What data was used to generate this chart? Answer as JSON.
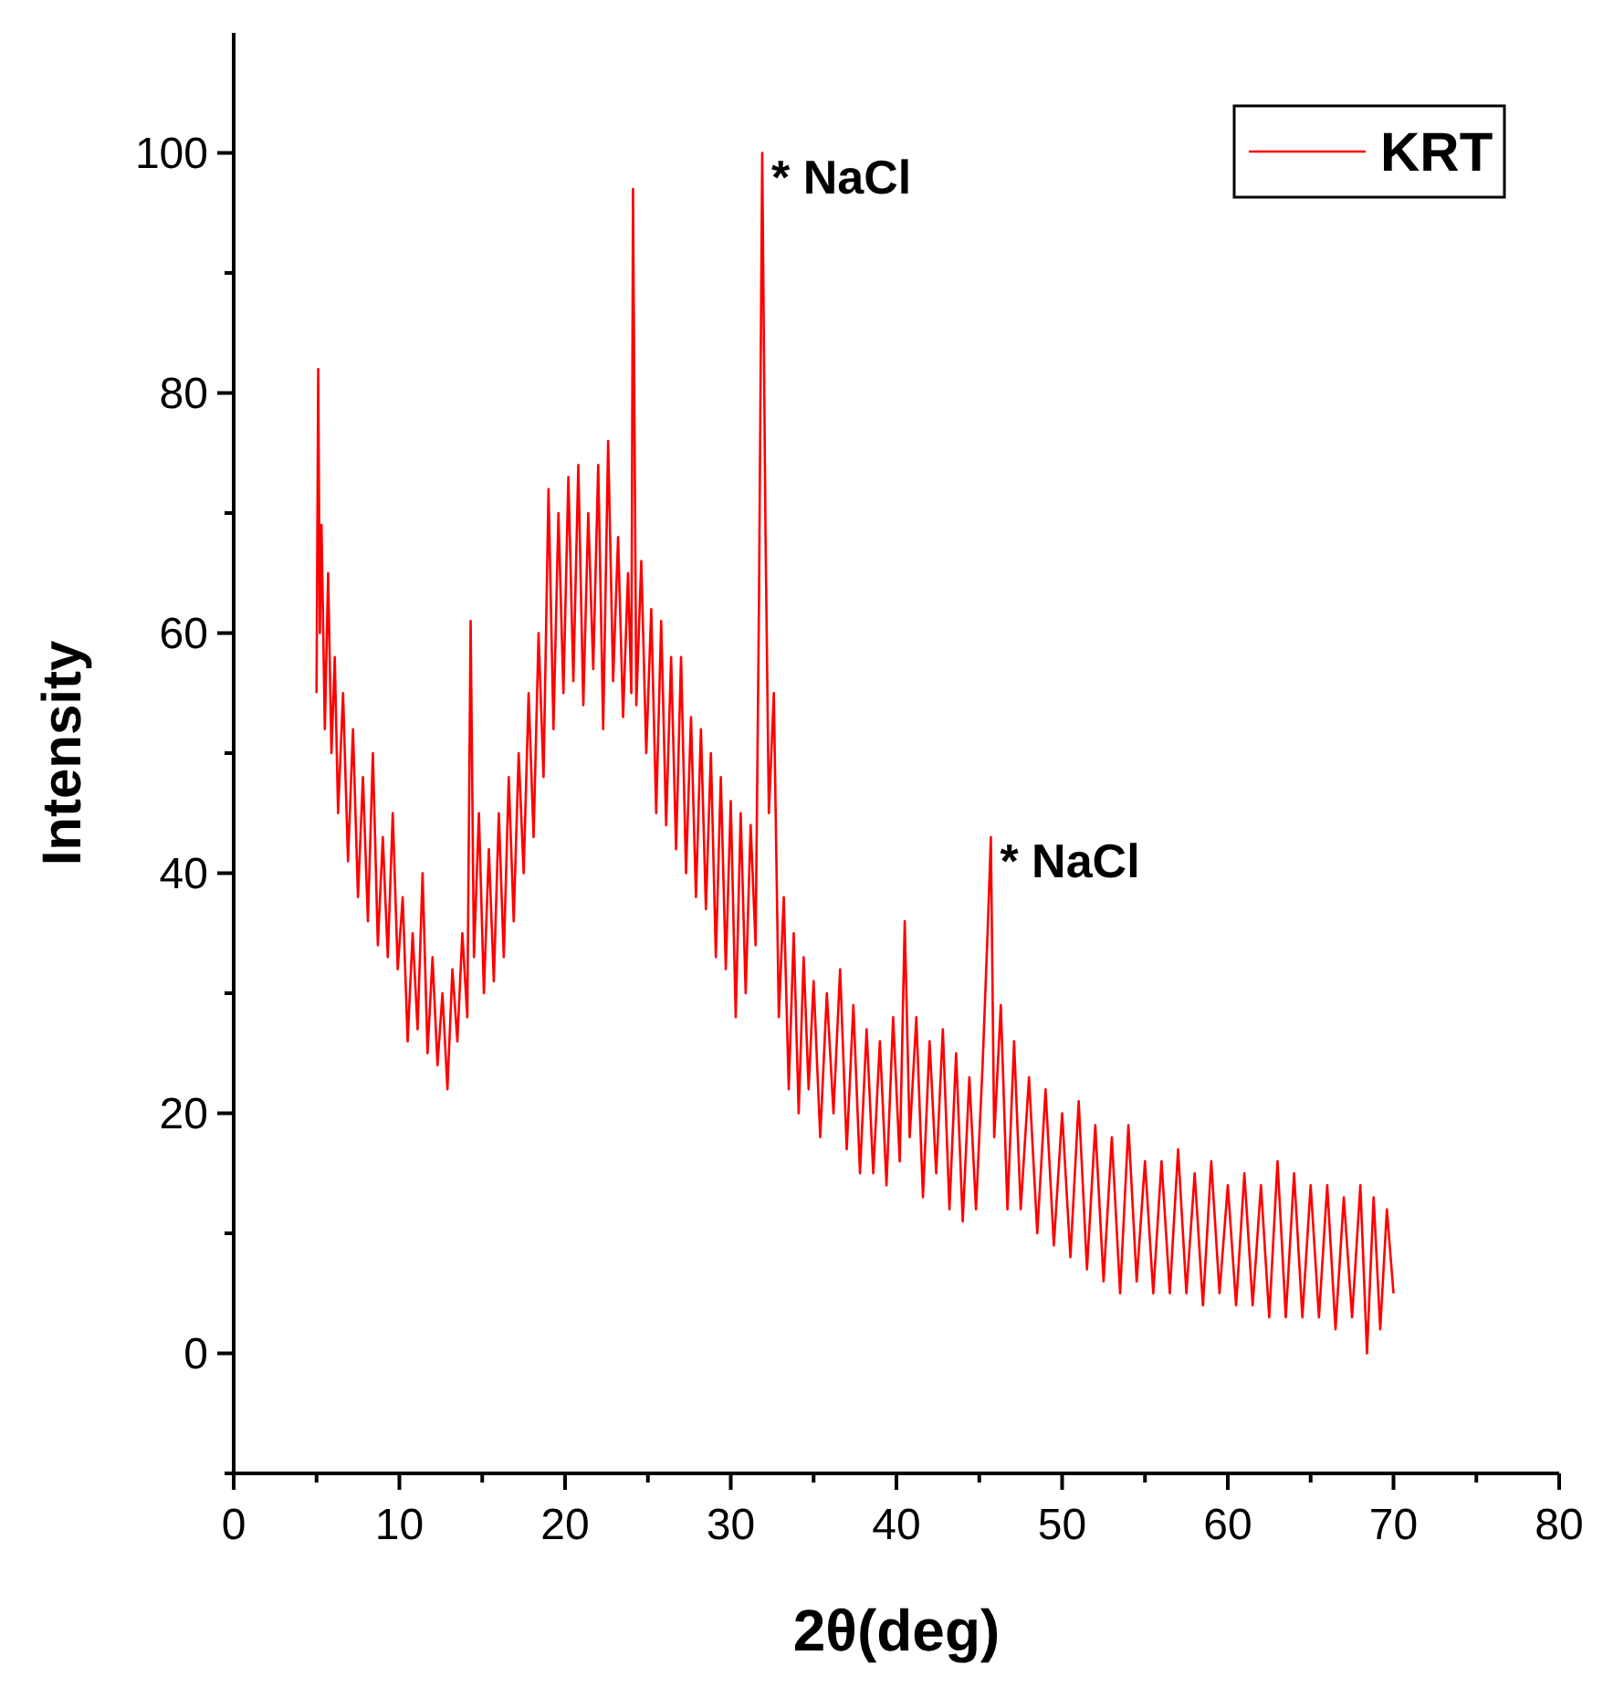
{
  "chart_data": {
    "type": "line",
    "xlabel": "2θ(deg)",
    "ylabel": "Intensity",
    "xlim": [
      0,
      80
    ],
    "ylim": [
      -10,
      110
    ],
    "xticks": [
      0,
      {
        "value": 5,
        "label": null
      },
      10,
      {
        "value": 15,
        "label": null
      },
      20,
      {
        "value": 25,
        "label": null
      },
      30,
      {
        "value": 35,
        "label": null
      },
      40,
      {
        "value": 45,
        "label": null
      },
      50,
      {
        "value": 55,
        "label": null
      },
      60,
      {
        "value": 65,
        "label": null
      },
      70,
      {
        "value": 75,
        "label": null
      },
      80
    ],
    "yticks": [
      {
        "value": -10,
        "label": null
      },
      0,
      {
        "value": 10,
        "label": null
      },
      20,
      {
        "value": 30,
        "label": null
      },
      40,
      {
        "value": 50,
        "label": null
      },
      60,
      {
        "value": 70,
        "label": null
      },
      80,
      {
        "value": 90,
        "label": null
      },
      100
    ],
    "grid": false,
    "legend": "top right",
    "marker": "none",
    "line_style": "solid",
    "annotations": [
      {
        "text": "* NaCl",
        "x": 31.9,
        "y": 100
      },
      {
        "text": "* NaCl",
        "x": 45.7,
        "y": 43
      }
    ],
    "series": [
      {
        "name": "KRT",
        "color": "#ff0000",
        "x": [
          5.0,
          5.1,
          5.2,
          5.3,
          5.5,
          5.7,
          5.9,
          6.1,
          6.3,
          6.6,
          6.9,
          7.2,
          7.5,
          7.8,
          8.1,
          8.4,
          8.7,
          9.0,
          9.3,
          9.6,
          9.9,
          10.2,
          10.5,
          10.8,
          11.1,
          11.4,
          11.7,
          12.0,
          12.3,
          12.6,
          12.9,
          13.2,
          13.5,
          13.8,
          14.1,
          14.3,
          14.5,
          14.8,
          15.1,
          15.4,
          15.7,
          16.0,
          16.3,
          16.6,
          16.9,
          17.2,
          17.5,
          17.8,
          18.1,
          18.4,
          18.7,
          19.0,
          19.3,
          19.6,
          19.9,
          20.2,
          20.5,
          20.8,
          21.1,
          21.4,
          21.7,
          22.0,
          22.3,
          22.6,
          22.9,
          23.2,
          23.5,
          23.8,
          24.0,
          24.1,
          24.3,
          24.6,
          24.9,
          25.2,
          25.5,
          25.8,
          26.1,
          26.4,
          26.7,
          27.0,
          27.3,
          27.6,
          27.9,
          28.2,
          28.5,
          28.8,
          29.1,
          29.4,
          29.7,
          30.0,
          30.3,
          30.6,
          30.9,
          31.2,
          31.5,
          31.7,
          31.9,
          32.1,
          32.3,
          32.6,
          32.9,
          33.2,
          33.5,
          33.8,
          34.1,
          34.4,
          34.7,
          35.0,
          35.4,
          35.8,
          36.2,
          36.6,
          37.0,
          37.4,
          37.8,
          38.2,
          38.6,
          39.0,
          39.4,
          39.8,
          40.2,
          40.5,
          40.8,
          41.2,
          41.6,
          42.0,
          42.4,
          42.8,
          43.2,
          43.6,
          44.0,
          44.4,
          44.8,
          45.2,
          45.5,
          45.7,
          45.9,
          46.3,
          46.7,
          47.1,
          47.5,
          48.0,
          48.5,
          49.0,
          49.5,
          50.0,
          50.5,
          51.0,
          51.5,
          52.0,
          52.5,
          53.0,
          53.5,
          54.0,
          54.5,
          55.0,
          55.5,
          56.0,
          56.5,
          57.0,
          57.5,
          58.0,
          58.5,
          59.0,
          59.5,
          60.0,
          60.5,
          61.0,
          61.5,
          62.0,
          62.5,
          63.0,
          63.5,
          64.0,
          64.5,
          65.0,
          65.5,
          66.0,
          66.5,
          67.0,
          67.5,
          68.0,
          68.4,
          68.8,
          69.2,
          69.6,
          70.0
        ],
        "values": [
          55,
          82,
          60,
          69,
          52,
          65,
          50,
          58,
          45,
          55,
          41,
          52,
          38,
          48,
          36,
          50,
          34,
          43,
          33,
          45,
          32,
          38,
          26,
          35,
          27,
          40,
          25,
          33,
          24,
          30,
          22,
          32,
          26,
          35,
          28,
          61,
          33,
          45,
          30,
          42,
          31,
          45,
          33,
          48,
          36,
          50,
          40,
          55,
          43,
          60,
          48,
          72,
          52,
          70,
          55,
          73,
          56,
          74,
          54,
          70,
          57,
          74,
          52,
          76,
          56,
          68,
          53,
          65,
          55,
          97,
          54,
          66,
          50,
          62,
          45,
          61,
          44,
          58,
          42,
          58,
          40,
          53,
          38,
          52,
          37,
          50,
          33,
          48,
          32,
          46,
          28,
          45,
          30,
          44,
          34,
          62,
          100,
          68,
          45,
          55,
          28,
          38,
          22,
          35,
          20,
          33,
          22,
          31,
          18,
          30,
          20,
          32,
          17,
          29,
          15,
          27,
          15,
          26,
          14,
          28,
          16,
          36,
          18,
          28,
          13,
          26,
          15,
          27,
          12,
          25,
          11,
          23,
          12,
          24,
          35,
          43,
          18,
          29,
          12,
          26,
          12,
          23,
          10,
          22,
          9,
          20,
          8,
          21,
          7,
          19,
          6,
          18,
          5,
          19,
          6,
          16,
          5,
          16,
          5,
          17,
          5,
          15,
          4,
          16,
          5,
          14,
          4,
          15,
          4,
          14,
          3,
          16,
          3,
          15,
          3,
          14,
          3,
          14,
          2,
          13,
          3,
          14,
          0,
          13,
          2,
          12,
          5
        ]
      }
    ]
  }
}
